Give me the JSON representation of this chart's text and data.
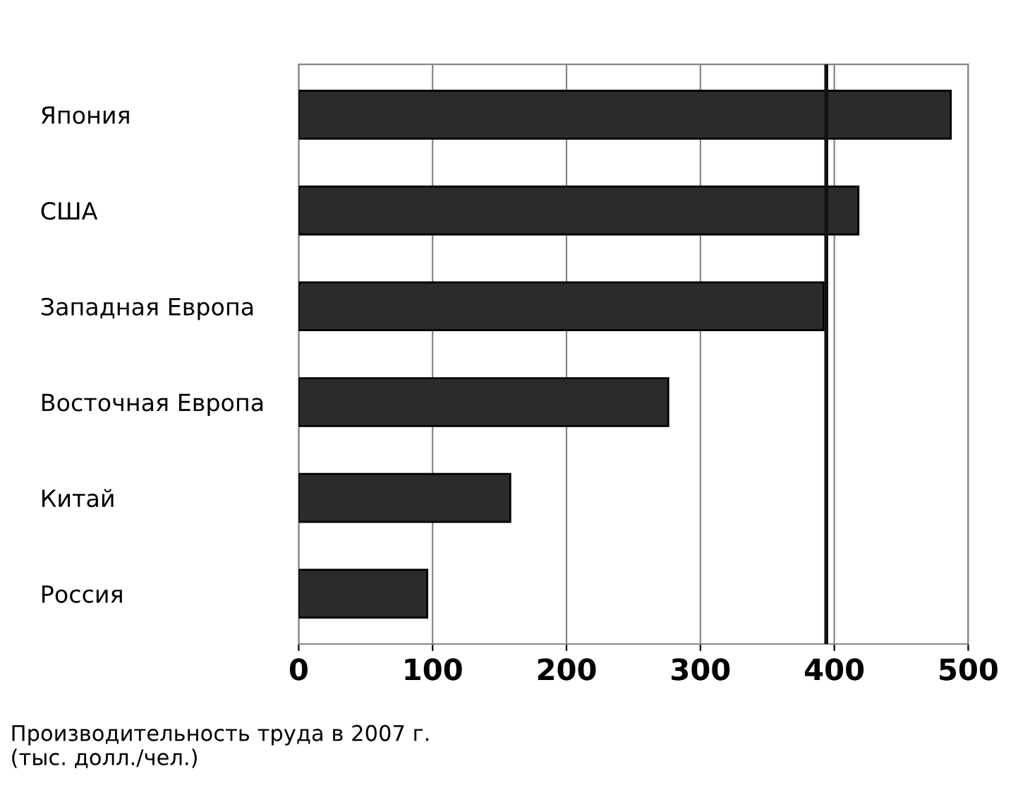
{
  "chart_data": {
    "type": "bar",
    "orientation": "horizontal",
    "categories": [
      "Япония",
      "США",
      "Западная Европа",
      "Восточная Европа",
      "Китай",
      "Россия"
    ],
    "values": [
      487,
      418,
      392,
      276,
      158,
      96
    ],
    "color": "#2b2b2b",
    "xlim": [
      0,
      500
    ],
    "xticks": [
      0,
      100,
      200,
      300,
      400,
      500
    ],
    "grid": "x",
    "ref_lines": [
      {
        "axis": "x",
        "value": 394,
        "color": "#111111"
      }
    ],
    "annotations": [
      "Производительность труда в 2007 г.\n(тыс. долл./чел.)"
    ]
  }
}
